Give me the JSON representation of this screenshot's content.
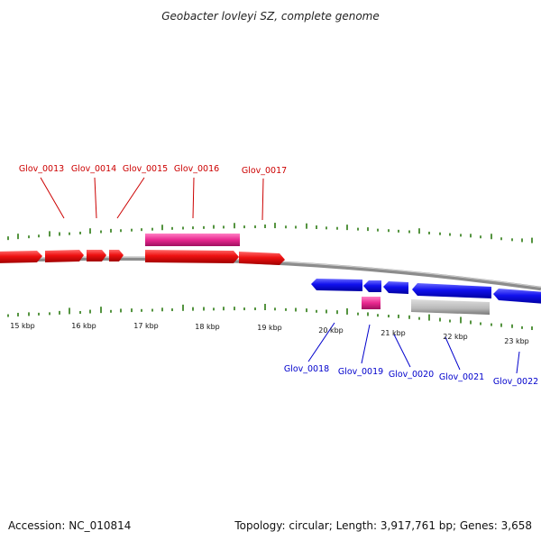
{
  "title": "Geobacter lovleyi SZ, complete genome",
  "footer": {
    "accession": "Accession: NC_010814",
    "summary": "Topology: circular; Length: 3,917,761 bp; Genes: 3,658"
  },
  "kbp_labels": [
    "15 kbp",
    "16 kbp",
    "17 kbp",
    "18 kbp",
    "19 kbp",
    "20 kbp",
    "21 kbp",
    "22 kbp",
    "23 kbp"
  ],
  "genes_forward": [
    "Glov_0013",
    "Glov_0014",
    "Glov_0015",
    "Glov_0016",
    "Glov_0017"
  ],
  "genes_reverse": [
    "Glov_0018",
    "Glov_0019",
    "Glov_0020",
    "Glov_0021",
    "Glov_0022"
  ],
  "colors": {
    "forward_cds": "#ee1111",
    "reverse_cds": "#1111ee",
    "rna_feature": "#e8288f",
    "gray_feature": "#b8b8b8",
    "gc_ticks": "#2a7a10",
    "backbone": "#8c8c8c"
  }
}
